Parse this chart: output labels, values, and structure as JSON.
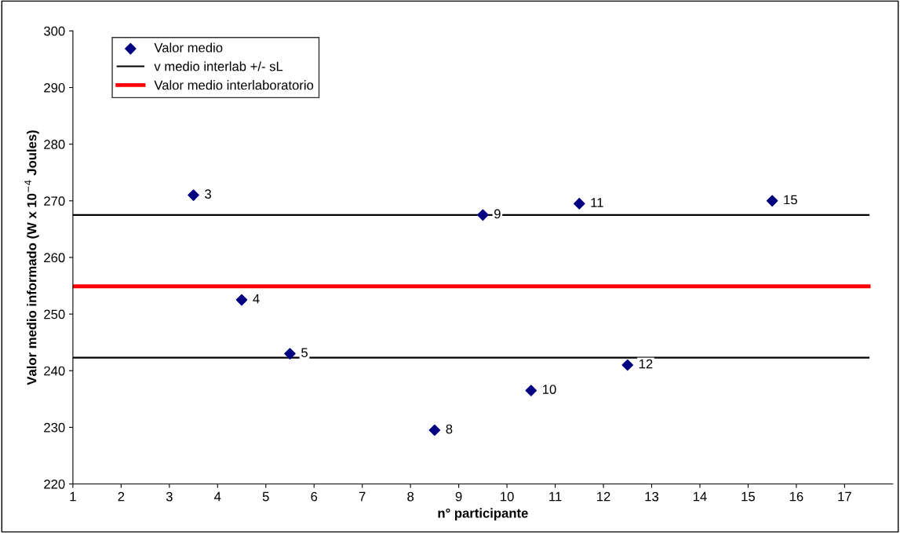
{
  "chart_data": {
    "type": "scatter",
    "xlabel": "n° participante",
    "ylabel": "Valor medio informado (W x 10$^{−4}$ Joules)",
    "xlim": [
      1,
      18
    ],
    "xticks": [
      1,
      2,
      3,
      4,
      5,
      6,
      7,
      8,
      9,
      10,
      11,
      12,
      13,
      14,
      15,
      16,
      17
    ],
    "ylim": [
      220,
      300
    ],
    "yticks": [
      220,
      230,
      240,
      250,
      260,
      270,
      280,
      290,
      300
    ],
    "grid": false,
    "legend": "top left",
    "series": [
      {
        "name": "Valor medio",
        "marker": "diamond",
        "color": "#000080",
        "x": [
          3.5,
          4.5,
          5.5,
          8.5,
          9.5,
          10.5,
          11.5,
          12.5,
          15.5
        ],
        "values": [
          271,
          252.5,
          243,
          229.5,
          267.5,
          236.5,
          269.5,
          241,
          270
        ]
      },
      {
        "name": "v medio interlab +/- sL",
        "type": "line",
        "color": "#000000",
        "x": [
          1,
          17.5
        ],
        "values": [
          267.5,
          267.5
        ]
      },
      {
        "type": "line",
        "color": "#000000",
        "x": [
          1,
          17.5
        ],
        "values": [
          242.3,
          242.3
        ]
      },
      {
        "name": "Valor medio interlaboratorio",
        "type": "line",
        "color": "#ff0000",
        "x": [
          1,
          17.5
        ],
        "values": [
          254.9,
          254.9
        ]
      }
    ],
    "annotations": [
      {
        "text": "3",
        "x": 3.5,
        "y": 271
      },
      {
        "text": "4",
        "x": 4.5,
        "y": 252.5
      },
      {
        "text": "5",
        "x": 5.5,
        "y": 243
      },
      {
        "text": "8",
        "x": 8.5,
        "y": 229.5
      },
      {
        "text": "9",
        "x": 9.5,
        "y": 267.5
      },
      {
        "text": "10",
        "x": 10.5,
        "y": 236.5
      },
      {
        "text": "11",
        "x": 11.5,
        "y": 269.5
      },
      {
        "text": "12",
        "x": 12.5,
        "y": 241
      },
      {
        "text": "15",
        "x": 15.5,
        "y": 270
      }
    ]
  }
}
